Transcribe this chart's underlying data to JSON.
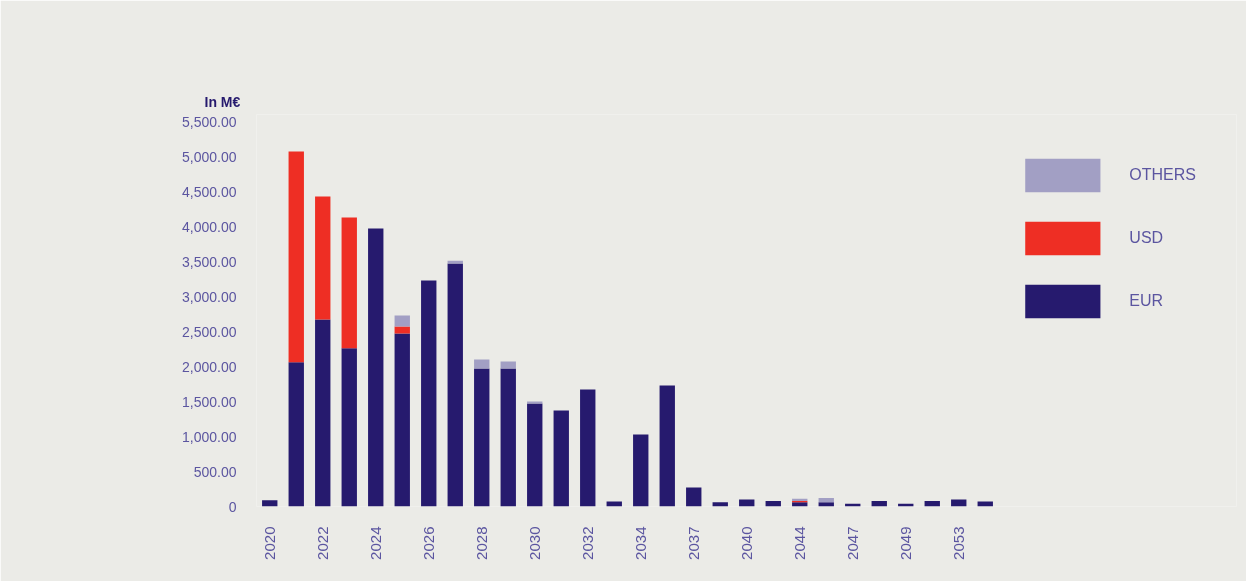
{
  "chart_data": {
    "type": "bar",
    "stacked": true,
    "ylabel": "In M€",
    "categories": [
      "2020",
      null,
      "2022",
      null,
      "2024",
      null,
      "2026",
      null,
      "2028",
      null,
      "2030",
      null,
      "2032",
      null,
      "2034",
      null,
      "2037",
      null,
      "2040",
      null,
      "2044",
      null,
      "2047",
      null,
      "2049",
      null,
      "2053",
      null
    ],
    "series": [
      {
        "name": "EUR",
        "color": "#261a6e",
        "values": [
          90,
          2060,
          2670,
          2260,
          3970,
          2470,
          3230,
          3470,
          1970,
          1970,
          1470,
          1370,
          1670,
          70,
          1030,
          1730,
          270,
          60,
          100,
          80,
          60,
          60,
          40,
          80,
          40,
          80,
          100,
          70
        ]
      },
      {
        "name": "USD",
        "color": "#ee2e24",
        "values": [
          0,
          3010,
          1760,
          1870,
          0,
          100,
          0,
          0,
          0,
          0,
          0,
          0,
          0,
          0,
          0,
          0,
          0,
          0,
          0,
          0,
          20,
          0,
          0,
          0,
          0,
          0,
          0,
          0
        ]
      },
      {
        "name": "OTHERS",
        "color": "#a29fc4",
        "values": [
          0,
          0,
          0,
          0,
          0,
          160,
          0,
          40,
          130,
          100,
          30,
          0,
          0,
          0,
          0,
          0,
          0,
          0,
          0,
          0,
          30,
          60,
          0,
          0,
          0,
          0,
          0,
          0
        ]
      }
    ],
    "ylim": [
      0,
      5600
    ],
    "yticks": [
      0,
      {
        "value": 500,
        "label": "500.00"
      },
      {
        "value": 1000,
        "label": "1,000.00"
      },
      {
        "value": 1500,
        "label": "1,500.00"
      },
      {
        "value": 2000,
        "label": "2,000.00"
      },
      {
        "value": 2500,
        "label": "2,500.00"
      },
      {
        "value": 3000,
        "label": "3,000.00"
      },
      {
        "value": 3500,
        "label": "3,500.00"
      },
      {
        "value": 4000,
        "label": "4,000.00"
      },
      {
        "value": 4500,
        "label": "4,500.00"
      },
      {
        "value": 5000,
        "label": "5,000.00"
      },
      {
        "value": 5500,
        "label": "5,500.00"
      }
    ],
    "grid": false,
    "legend": "top right"
  }
}
